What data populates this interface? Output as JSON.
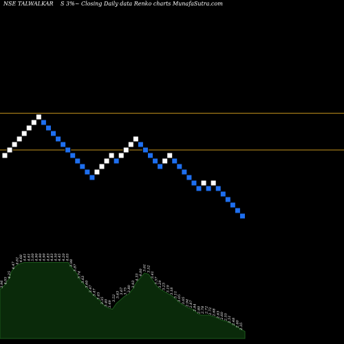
{
  "header": {
    "left": "NSE TALWALKAR",
    "right": "S 3%~  Closing Daily data  Renko  charts MunafaSutra.com"
  },
  "colors": {
    "background": "#000000",
    "up_brick": "#ffffff",
    "down_brick": "#1e6ff0",
    "brick_border": "#000000",
    "ref_line": "#c8961e",
    "area_fill": "#0a2a0a",
    "area_stroke": "#1c5a1c"
  },
  "chart_data": {
    "type": "renko",
    "reference_levels": [
      5.8,
      4.8
    ],
    "bricks": [
      {
        "d": "up",
        "close": 4.8
      },
      {
        "d": "up",
        "close": 4.95
      },
      {
        "d": "up",
        "close": 5.1
      },
      {
        "d": "up",
        "close": 5.25
      },
      {
        "d": "up",
        "close": 5.4
      },
      {
        "d": "up",
        "close": 5.55
      },
      {
        "d": "up",
        "close": 5.7
      },
      {
        "d": "up",
        "close": 5.85
      },
      {
        "d": "down",
        "close": 5.7
      },
      {
        "d": "down",
        "close": 5.55
      },
      {
        "d": "down",
        "close": 5.4
      },
      {
        "d": "down",
        "close": 5.25
      },
      {
        "d": "down",
        "close": 5.1
      },
      {
        "d": "down",
        "close": 4.95
      },
      {
        "d": "down",
        "close": 4.8
      },
      {
        "d": "down",
        "close": 4.65
      },
      {
        "d": "down",
        "close": 4.5
      },
      {
        "d": "down",
        "close": 4.35
      },
      {
        "d": "down",
        "close": 4.2
      },
      {
        "d": "up",
        "close": 4.35
      },
      {
        "d": "up",
        "close": 4.5
      },
      {
        "d": "up",
        "close": 4.65
      },
      {
        "d": "up",
        "close": 4.8
      },
      {
        "d": "down",
        "close": 4.65
      },
      {
        "d": "up",
        "close": 4.8
      },
      {
        "d": "up",
        "close": 4.95
      },
      {
        "d": "up",
        "close": 5.1
      },
      {
        "d": "up",
        "close": 5.25
      },
      {
        "d": "down",
        "close": 5.1
      },
      {
        "d": "down",
        "close": 4.95
      },
      {
        "d": "down",
        "close": 4.8
      },
      {
        "d": "down",
        "close": 4.65
      },
      {
        "d": "down",
        "close": 4.5
      },
      {
        "d": "up",
        "close": 4.65
      },
      {
        "d": "up",
        "close": 4.8
      },
      {
        "d": "down",
        "close": 4.65
      },
      {
        "d": "down",
        "close": 4.5
      },
      {
        "d": "down",
        "close": 4.35
      },
      {
        "d": "down",
        "close": 4.2
      },
      {
        "d": "down",
        "close": 4.05
      },
      {
        "d": "down",
        "close": 3.9
      },
      {
        "d": "up",
        "close": 4.05
      },
      {
        "d": "down",
        "close": 3.9
      },
      {
        "d": "up",
        "close": 4.05
      },
      {
        "d": "down",
        "close": 3.9
      },
      {
        "d": "down",
        "close": 3.75
      },
      {
        "d": "down",
        "close": 3.6
      },
      {
        "d": "down",
        "close": 3.45
      },
      {
        "d": "down",
        "close": 3.3
      },
      {
        "d": "down",
        "close": 3.15
      }
    ],
    "labels": [
      "3.96",
      "4.05",
      "4.25",
      "4.47",
      "4.61",
      "4.68",
      "4.61",
      "4.61",
      "5.00",
      "4.90",
      "4.90",
      "4.90",
      "4.83",
      "4.83",
      "4.50",
      "4.45",
      "4.20",
      "4.05",
      "3.98",
      "3.87",
      "3.74",
      "3.63",
      "3.60",
      "3.47",
      "3.47",
      "3.45",
      "3.35",
      "3.40",
      "3.49",
      "3.52",
      "3.63",
      "3.67",
      "3.75",
      "3.80",
      "3.93",
      "4.33",
      "4.00",
      "3.61",
      "3.52",
      "3.41",
      "3.37",
      "3.29",
      "3.23",
      "3.19",
      "3.18",
      "3.11",
      "3.05",
      "3.05",
      "2.94",
      "2.87",
      "2.84",
      "2.80",
      "2.78",
      "2.72",
      "2.72",
      "2.68",
      "2.63",
      "2.60",
      "2.55",
      "2.51",
      "2.48",
      "2.40",
      "2.35"
    ],
    "area_profile": [
      0.42,
      0.45,
      0.5,
      0.58,
      0.62,
      0.64,
      0.65,
      0.65,
      0.65,
      0.65,
      0.65,
      0.65,
      0.65,
      0.65,
      0.65,
      0.65,
      0.65,
      0.65,
      0.6,
      0.56,
      0.5,
      0.46,
      0.42,
      0.38,
      0.35,
      0.32,
      0.28,
      0.26,
      0.25,
      0.3,
      0.33,
      0.36,
      0.38,
      0.42,
      0.48,
      0.52,
      0.56,
      0.55,
      0.5,
      0.45,
      0.42,
      0.4,
      0.38,
      0.36,
      0.33,
      0.3,
      0.28,
      0.26,
      0.25,
      0.22,
      0.2,
      0.2,
      0.2,
      0.19,
      0.18,
      0.16,
      0.15,
      0.14,
      0.12,
      0.1,
      0.08,
      0.06
    ]
  }
}
